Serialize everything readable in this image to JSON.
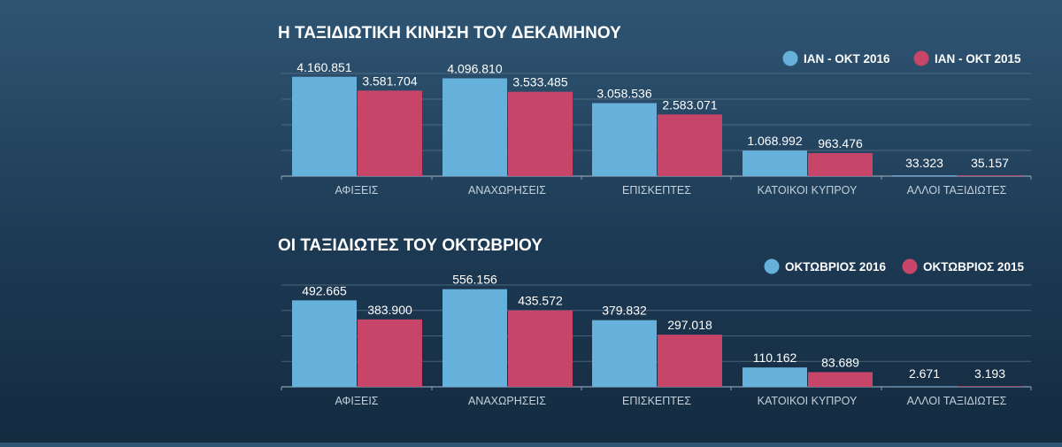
{
  "colors": {
    "series_2016": "#66b0dc",
    "series_2015": "#c8456a",
    "text": "#ffffff",
    "axis_label": "#c5d1dc",
    "grid": "#5d7790"
  },
  "chart_data": [
    {
      "type": "bar",
      "title": "Η ΤΑΞΙΔΙΩΤΙΚΗ ΚΙΝΗΣΗ ΤΟΥ ΔΕΚΑΜΗΝΟΥ",
      "categories": [
        "ΑΦΙΞΕΙΣ",
        "ΑΝΑΧΩΡΗΣΕΙΣ",
        "ΕΠΙΣΚΕΠΤΕΣ",
        "ΚΑΤΟΙΚΟΙ ΚΥΠΡΟΥ",
        "ΑΛΛΟΙ ΤΑΞΙΔΙΩΤΕΣ"
      ],
      "series": [
        {
          "name": "ΙΑΝ - ΟΚΤ 2016",
          "values": [
            4160851,
            4096810,
            3058536,
            1068992,
            33323
          ],
          "labels": [
            "4.160.851",
            "4.096.810",
            "3.058.536",
            "1.068.992",
            "33.323"
          ]
        },
        {
          "name": "ΙΑΝ - ΟΚΤ 2015",
          "values": [
            3581704,
            3533485,
            2583071,
            963476,
            35157
          ],
          "labels": [
            "3.581.704",
            "3.533.485",
            "2.583.071",
            "963.476",
            "35.157"
          ]
        }
      ],
      "ylim": [
        0,
        4300000
      ],
      "grid": true,
      "legend": "top-right"
    },
    {
      "type": "bar",
      "title": "ΟΙ ΤΑΞΙΔΙΩΤΕΣ ΤΟΥ ΟΚΤΩΒΡΙΟΥ",
      "categories": [
        "ΑΦΙΞΕΙΣ",
        "ΑΝΑΧΩΡΗΣΕΙΣ",
        "ΕΠΙΣΚΕΠΤΕΣ",
        "ΚΑΤΟΙΚΟΙ ΚΥΠΡΟΥ",
        "ΑΛΛΟΙ ΤΑΞΙΔΙΩΤΕΣ"
      ],
      "series": [
        {
          "name": "ΟΚΤΩΒΡΙΟΣ 2016",
          "values": [
            492665,
            556156,
            379832,
            110162,
            2671
          ],
          "labels": [
            "492.665",
            "556.156",
            "379.832",
            "110.162",
            "2.671"
          ]
        },
        {
          "name": "ΟΚΤΩΒΡΙΟΣ 2015",
          "values": [
            383900,
            435572,
            297018,
            83689,
            3193
          ],
          "labels": [
            "383.900",
            "435.572",
            "297.018",
            "83.689",
            "3.193"
          ]
        }
      ],
      "ylim": [
        0,
        580000
      ],
      "grid": true,
      "legend": "top-right"
    }
  ]
}
